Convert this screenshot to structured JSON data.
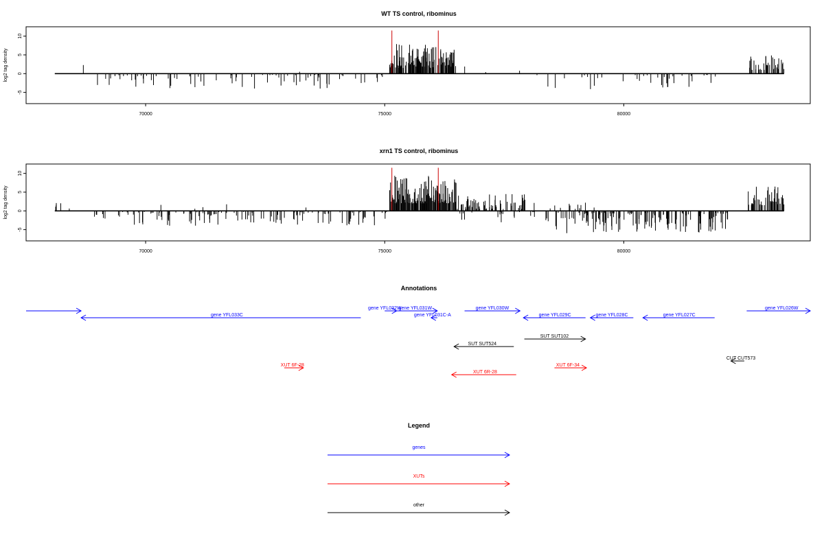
{
  "chart_data": [
    {
      "type": "bar",
      "title": "WT TS control, ribominus",
      "ylabel": "log2 tag density",
      "xlim": [
        67500,
        83900
      ],
      "ylim": [
        -8,
        12.5
      ],
      "y_ticks": [
        -5,
        0,
        5,
        10
      ],
      "y_tick_labels": [
        "-5",
        "0",
        "5",
        "10"
      ],
      "x_ticks": [
        70000,
        75000,
        80000
      ],
      "x_tick_labels": [
        "70000",
        "75000",
        "80000"
      ],
      "grid": false,
      "marker_lines": {
        "color": "#cc0000",
        "x": [
          75150,
          76120
        ],
        "top": 11.5
      },
      "bar_color": "#000000",
      "seed": 7,
      "series": [
        {
          "x_start": 68100,
          "x_end": 68700,
          "density": 0.012,
          "min": 1.0,
          "max": 3.0
        },
        {
          "x_start": 68800,
          "x_end": 75050,
          "density": 0.11,
          "min": -4.0,
          "max": -0.3
        },
        {
          "x_start": 72500,
          "x_end": 74900,
          "density": 0.003,
          "min": 0.3,
          "max": 1.5
        },
        {
          "x_start": 75100,
          "x_end": 76500,
          "density": 0.7,
          "min": 1.5,
          "max": 8.0
        },
        {
          "x_start": 76500,
          "x_end": 77900,
          "density": 0.02,
          "min": 0.4,
          "max": 2.2
        },
        {
          "x_start": 77900,
          "x_end": 79850,
          "density": 0.06,
          "min": -4.5,
          "max": -0.3
        },
        {
          "x_start": 79400,
          "x_end": 79700,
          "density": 0.02,
          "min": 0.4,
          "max": 1.5
        },
        {
          "x_start": 79850,
          "x_end": 81950,
          "density": 0.12,
          "min": -4.0,
          "max": -0.3
        },
        {
          "x_start": 82600,
          "x_end": 83350,
          "density": 0.45,
          "min": 1.0,
          "max": 5.0
        }
      ]
    },
    {
      "type": "bar",
      "title": "xrn1 TS control, ribominus",
      "ylabel": "log2 tag density",
      "xlim": [
        67500,
        83900
      ],
      "ylim": [
        -8,
        12.5
      ],
      "y_ticks": [
        -5,
        0,
        5,
        10
      ],
      "y_tick_labels": [
        "-5",
        "0",
        "5",
        "10"
      ],
      "x_ticks": [
        70000,
        75000,
        80000
      ],
      "x_tick_labels": [
        "70000",
        "75000",
        "80000"
      ],
      "grid": false,
      "marker_lines": {
        "color": "#cc0000",
        "x": [
          75150,
          76120
        ],
        "top": 11.5
      },
      "bar_color": "#000000",
      "seed": 19,
      "series": [
        {
          "x_start": 68100,
          "x_end": 68700,
          "density": 0.06,
          "min": 0.5,
          "max": 3.5
        },
        {
          "x_start": 68900,
          "x_end": 75050,
          "density": 0.2,
          "min": -4.0,
          "max": -0.3
        },
        {
          "x_start": 69500,
          "x_end": 75000,
          "density": 0.006,
          "min": 0.3,
          "max": 2.0
        },
        {
          "x_start": 75100,
          "x_end": 76500,
          "density": 0.8,
          "min": 2.0,
          "max": 9.5
        },
        {
          "x_start": 76500,
          "x_end": 77950,
          "density": 0.5,
          "min": 0.5,
          "max": 4.5
        },
        {
          "x_start": 76500,
          "x_end": 78300,
          "density": 0.12,
          "min": -3.5,
          "max": -0.3
        },
        {
          "x_start": 78000,
          "x_end": 79600,
          "density": 0.06,
          "min": 0.4,
          "max": 2.5
        },
        {
          "x_start": 78300,
          "x_end": 79200,
          "density": 0.25,
          "min": -6.0,
          "max": -0.3
        },
        {
          "x_start": 79200,
          "x_end": 82200,
          "density": 0.4,
          "min": -6.0,
          "max": -0.5
        },
        {
          "x_start": 82600,
          "x_end": 83350,
          "density": 0.6,
          "min": 1.5,
          "max": 6.5
        }
      ]
    },
    {
      "type": "annotation-track",
      "title": "Annotations",
      "xlim": [
        67500,
        83900
      ],
      "colors": {
        "genes": "#0000ff",
        "XUTs": "#ff0000",
        "other": "#000000"
      },
      "features": [
        {
          "label": "",
          "start": 67500,
          "end": 68650,
          "strand": "+",
          "row": 0,
          "kind": "genes",
          "label_x": 68000
        },
        {
          "label": "gene YFL033C",
          "start": 68650,
          "end": 74500,
          "strand": "-",
          "row": 1,
          "kind": "genes",
          "label_x": 71700
        },
        {
          "label": "gene YFL032W",
          "start": 75000,
          "end": 75250,
          "strand": "+",
          "row": 0,
          "kind": "genes",
          "label_x": 75000
        },
        {
          "label": "gene YFL031W",
          "start": 75200,
          "end": 76100,
          "strand": "+",
          "row": 0,
          "kind": "genes",
          "label_x": 75640
        },
        {
          "label": "gene YFL031C-A",
          "start": 75970,
          "end": 76100,
          "strand": "-",
          "row": 1,
          "kind": "genes",
          "label_x": 76000
        },
        {
          "label": "gene YFL030W",
          "start": 76670,
          "end": 77830,
          "strand": "+",
          "row": 0,
          "kind": "genes",
          "label_x": 77250
        },
        {
          "label": "gene YFL029C",
          "start": 77900,
          "end": 79200,
          "strand": "-",
          "row": 1,
          "kind": "genes",
          "label_x": 78560
        },
        {
          "label": "gene YFL028C",
          "start": 79300,
          "end": 80200,
          "strand": "-",
          "row": 1,
          "kind": "genes",
          "label_x": 79750
        },
        {
          "label": "gene YFL027C",
          "start": 80400,
          "end": 81900,
          "strand": "-",
          "row": 1,
          "kind": "genes",
          "label_x": 81160
        },
        {
          "label": "gene YFL026W",
          "start": 82570,
          "end": 83900,
          "strand": "+",
          "row": 0,
          "kind": "genes",
          "label_x": 83300
        },
        {
          "label": "SUT SUT524",
          "start": 76450,
          "end": 77700,
          "strand": "-",
          "row": 3,
          "kind": "other",
          "label_x": 77040
        },
        {
          "label": "SUT SUT102",
          "start": 77920,
          "end": 79200,
          "strand": "+",
          "row": 2,
          "kind": "other",
          "label_x": 78550
        },
        {
          "label": "CUT CUT573",
          "start": 82240,
          "end": 82520,
          "strand": "-",
          "row": 4,
          "kind": "other",
          "label_x": 82450
        },
        {
          "label": "XUT 6F-28",
          "start": 72900,
          "end": 73300,
          "strand": "+",
          "row": 5,
          "kind": "XUTs",
          "label_x": 73070
        },
        {
          "label": "XUT 6R-28",
          "start": 76400,
          "end": 77750,
          "strand": "-",
          "row": 6,
          "kind": "XUTs",
          "label_x": 77100
        },
        {
          "label": "XUT 6F-34",
          "start": 78550,
          "end": 79220,
          "strand": "+",
          "row": 5,
          "kind": "XUTs",
          "label_x": 78830
        }
      ]
    },
    {
      "type": "legend",
      "title": "Legend",
      "entries": [
        {
          "label": "genes",
          "color": "#0000ff"
        },
        {
          "label": "XUTs",
          "color": "#ff0000"
        },
        {
          "label": "other",
          "color": "#000000"
        }
      ]
    }
  ]
}
